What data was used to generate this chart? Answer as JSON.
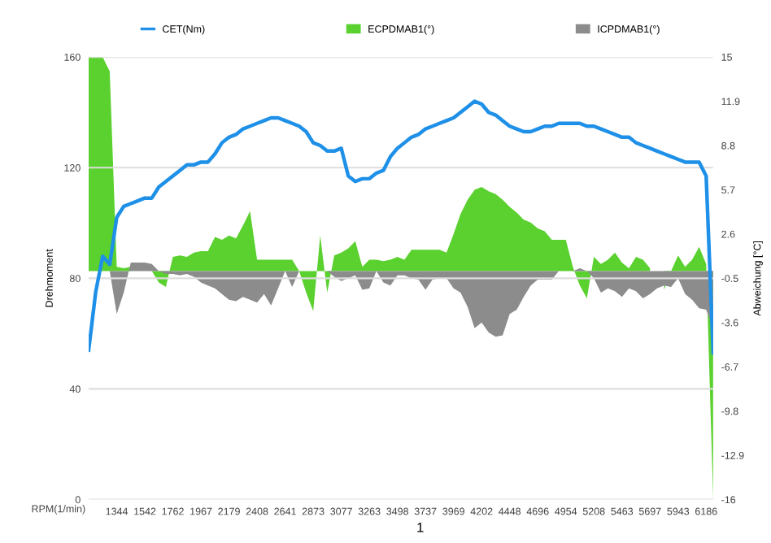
{
  "chart_data": {
    "type": "line",
    "xlabel": "RPM(1/min)",
    "ylabel": "Drehmoment",
    "y2label": "Abweichung [°C]",
    "annotations": [
      "1"
    ],
    "categories": [
      null,
      null,
      null,
      null,
      "1344",
      null,
      null,
      null,
      "1542",
      null,
      null,
      null,
      "1762",
      null,
      null,
      null,
      "1967",
      null,
      null,
      null,
      "2179",
      null,
      null,
      null,
      "2408",
      null,
      null,
      null,
      "2641",
      null,
      null,
      null,
      "2873",
      null,
      null,
      null,
      "3077",
      null,
      null,
      null,
      "3263",
      null,
      null,
      null,
      "3498",
      null,
      null,
      null,
      "3737",
      null,
      null,
      null,
      "3969",
      null,
      null,
      null,
      "4202",
      null,
      null,
      null,
      "4448",
      null,
      null,
      null,
      "4696",
      null,
      null,
      null,
      "4954",
      null,
      null,
      null,
      "5208",
      null,
      null,
      null,
      "5463",
      null,
      null,
      null,
      "5697",
      null,
      null,
      null,
      "5943",
      null,
      null,
      null,
      "6186",
      null
    ],
    "series": [
      {
        "name": "CET(Nm)",
        "color": "#1e90e8",
        "values": [
          54,
          75,
          88,
          85,
          102,
          106,
          107,
          108,
          109,
          109,
          113,
          115,
          117,
          119,
          121,
          121,
          122,
          122,
          125,
          129,
          131,
          132,
          134,
          135,
          136,
          137,
          138,
          138,
          137,
          136,
          135,
          133,
          129,
          128,
          126,
          126,
          127,
          117,
          115,
          116,
          116,
          118,
          119,
          124,
          127,
          129,
          131,
          132,
          134,
          135,
          136,
          137,
          138,
          140,
          142,
          144,
          143,
          140,
          139,
          137,
          135,
          134,
          133,
          133,
          134,
          135,
          135,
          136,
          136,
          136,
          136,
          135,
          135,
          134,
          133,
          132,
          131,
          131,
          129,
          128,
          127,
          126,
          125,
          124,
          123,
          122,
          122,
          122,
          117,
          53
        ]
      },
      {
        "name": "ECPDMAB1(°)",
        "type": "area",
        "axis": "y2",
        "color": "#5ad12f",
        "values": [
          15,
          15,
          15,
          14,
          0.3,
          0.2,
          0.3,
          null,
          0,
          0,
          -0.8,
          -1.1,
          1.0,
          1.1,
          1.0,
          1.3,
          1.4,
          1.4,
          2.4,
          2.2,
          2.5,
          2.3,
          3.2,
          4.2,
          0.8,
          0.8,
          0.8,
          0.8,
          0.8,
          0.8,
          0,
          -1.5,
          -2.8,
          2.5,
          -1.5,
          1.1,
          1.3,
          1.6,
          2.1,
          0.3,
          0.8,
          0.8,
          0.7,
          0.8,
          1.0,
          0.8,
          1.5,
          1.5,
          1.5,
          1.5,
          1.5,
          1.3,
          2.6,
          4.0,
          5.0,
          5.7,
          5.9,
          5.6,
          5.4,
          5.0,
          4.5,
          4.1,
          3.6,
          3.4,
          3.0,
          2.8,
          2.2,
          2.2,
          2.2,
          0.3,
          -1.0,
          -1.9,
          1.0,
          0.5,
          0.8,
          1.3,
          0.6,
          0.2,
          1.0,
          0.8,
          0.2,
          null,
          -1.3,
          0,
          1.1,
          0.3,
          0.8,
          1.7,
          0.5,
          -16
        ]
      },
      {
        "name": "ICPDMAB1(°)",
        "type": "area",
        "axis": "y2",
        "color": "#8c8c8c",
        "values": [
          0,
          0,
          0,
          0,
          -3.0,
          -1.5,
          0.6,
          0.6,
          0.6,
          0.5,
          0,
          -0.2,
          -0.2,
          -0.3,
          -0.2,
          -0.4,
          -0.8,
          -1.0,
          -1.2,
          -1.6,
          -2.0,
          -2.1,
          -1.8,
          -2.0,
          -2.2,
          -1.6,
          -2.4,
          -1.2,
          0,
          -1.1,
          0,
          0,
          0,
          0,
          0,
          -0.4,
          -0.7,
          -0.5,
          -0.3,
          -1.3,
          -1.2,
          0,
          -0.8,
          -1.0,
          -0.3,
          -0.3,
          -0.5,
          -0.6,
          -1.3,
          -0.6,
          -0.5,
          -0.5,
          -1.2,
          -1.5,
          -2.5,
          -4.0,
          -3.6,
          -4.3,
          -4.6,
          -4.5,
          -3.0,
          -2.7,
          -1.8,
          -1.0,
          -0.6,
          -0.6,
          -0.6,
          0,
          0,
          0,
          0.2,
          0,
          -0.5,
          -1.5,
          -1.2,
          -1.4,
          -1.8,
          -1.2,
          -1.4,
          -1.9,
          -1.6,
          -1.2,
          -1.0,
          -1.1,
          -0.5,
          -1.6,
          -2.0,
          -2.6,
          -2.7,
          -4.0
        ]
      }
    ],
    "ylim": [
      0,
      160
    ],
    "yticks": [
      0,
      40,
      80,
      120,
      160
    ],
    "y2lim": [
      -16,
      15
    ],
    "y2ticks": [
      -16,
      -12.9,
      -9.8,
      -6.7,
      -3.6,
      -0.5,
      2.6,
      5.7,
      8.8,
      11.9,
      15
    ],
    "grid": "y",
    "legend": "top"
  }
}
